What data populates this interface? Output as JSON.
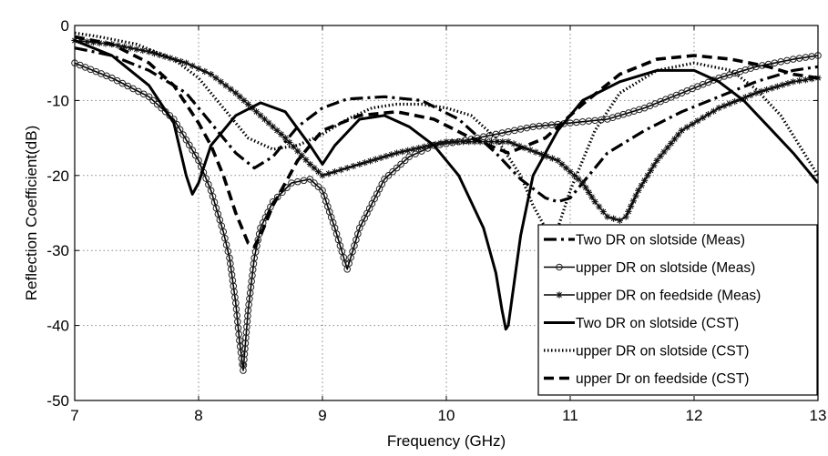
{
  "chart_data": {
    "type": "line",
    "title": "",
    "xlabel": "Frequency (GHz)",
    "ylabel": "Reflection Coefficient(dB)",
    "xlim": [
      7,
      13
    ],
    "ylim": [
      -50,
      0
    ],
    "xticks": [
      "7",
      "8",
      "9",
      "10",
      "11",
      "12",
      "13"
    ],
    "yticks": [
      "0",
      "-10",
      "-20",
      "-30",
      "-40",
      "-50"
    ],
    "grid": true,
    "legend_position": "bottom-right",
    "series": [
      {
        "name": "Two DR on slotside (Meas)",
        "style": "dashdot",
        "marker": "none",
        "x": [
          7.0,
          7.3,
          7.6,
          7.9,
          8.1,
          8.3,
          8.45,
          8.6,
          8.8,
          9.0,
          9.2,
          9.5,
          9.8,
          10.1,
          10.4,
          10.6,
          10.8,
          10.9,
          11.0,
          11.1,
          11.3,
          11.6,
          11.9,
          12.2,
          12.5,
          12.8,
          13.0
        ],
        "y": [
          -3.0,
          -4.0,
          -6.0,
          -9.0,
          -13.0,
          -17.0,
          -19.0,
          -17.5,
          -13.5,
          -11.0,
          -9.8,
          -9.5,
          -10.0,
          -12.5,
          -17.0,
          -20.5,
          -23.0,
          -23.5,
          -23.0,
          -21.0,
          -17.0,
          -14.0,
          -11.5,
          -9.5,
          -7.5,
          -6.0,
          -5.5
        ]
      },
      {
        "name": "upper DR on slotside (Meas)",
        "style": "solid",
        "marker": "circle",
        "x": [
          7.0,
          7.3,
          7.6,
          7.8,
          8.0,
          8.1,
          8.2,
          8.25,
          8.3,
          8.33,
          8.36,
          8.4,
          8.45,
          8.5,
          8.6,
          8.75,
          8.9,
          9.0,
          9.1,
          9.2,
          9.3,
          9.5,
          9.7,
          9.9,
          10.1,
          10.4,
          10.7,
          11.0,
          11.3,
          11.6,
          11.9,
          12.2,
          12.5,
          12.8,
          13.0
        ],
        "y": [
          -5.0,
          -7.0,
          -9.5,
          -12.5,
          -18.0,
          -22.0,
          -27.5,
          -31.0,
          -37.0,
          -42.0,
          -46.0,
          -38.0,
          -31.0,
          -27.0,
          -23.5,
          -21.0,
          -20.5,
          -22.0,
          -27.0,
          -32.5,
          -27.0,
          -20.5,
          -17.5,
          -16.0,
          -15.5,
          -14.5,
          -13.5,
          -13.0,
          -12.5,
          -11.0,
          -9.0,
          -7.0,
          -5.5,
          -4.5,
          -4.0
        ]
      },
      {
        "name": "upper DR on feedside (Meas)",
        "style": "solid",
        "marker": "star",
        "x": [
          7.0,
          7.3,
          7.6,
          7.9,
          8.1,
          8.3,
          8.5,
          8.7,
          8.9,
          9.0,
          9.1,
          9.3,
          9.6,
          10.0,
          10.5,
          10.9,
          11.1,
          11.2,
          11.3,
          11.4,
          11.45,
          11.55,
          11.7,
          11.9,
          12.2,
          12.5,
          12.8,
          13.0
        ],
        "y": [
          -2.0,
          -2.5,
          -3.5,
          -5.0,
          -6.5,
          -9.0,
          -12.0,
          -15.0,
          -18.5,
          -20.0,
          -19.5,
          -18.5,
          -17.0,
          -15.5,
          -15.5,
          -18.0,
          -21.0,
          -23.5,
          -25.5,
          -26.0,
          -25.5,
          -22.0,
          -18.0,
          -14.0,
          -11.0,
          -9.0,
          -7.5,
          -7.0
        ]
      },
      {
        "name": "Two DR on slotside (CST)",
        "style": "solid-thick",
        "marker": "none",
        "x": [
          7.0,
          7.3,
          7.6,
          7.8,
          7.9,
          7.95,
          8.0,
          8.1,
          8.3,
          8.5,
          8.7,
          8.9,
          9.0,
          9.1,
          9.3,
          9.5,
          9.7,
          9.9,
          10.1,
          10.3,
          10.4,
          10.45,
          10.48,
          10.5,
          10.55,
          10.6,
          10.7,
          10.9,
          11.1,
          11.4,
          11.7,
          12.0,
          12.2,
          12.4,
          12.6,
          12.8,
          13.0
        ],
        "y": [
          -2.0,
          -4.0,
          -8.0,
          -13.0,
          -20.0,
          -22.5,
          -21.0,
          -16.0,
          -12.0,
          -10.3,
          -11.5,
          -16.0,
          -18.5,
          -16.0,
          -12.5,
          -12.0,
          -13.5,
          -16.0,
          -20.0,
          -27.0,
          -33.0,
          -38.0,
          -40.5,
          -40.0,
          -34.0,
          -28.0,
          -20.0,
          -14.0,
          -10.0,
          -7.5,
          -6.0,
          -6.0,
          -7.5,
          -10.0,
          -13.5,
          -17.0,
          -21.0
        ]
      },
      {
        "name": "upper DR on slotside (CST)",
        "style": "dotted",
        "marker": "none",
        "x": [
          7.0,
          7.2,
          7.5,
          7.8,
          8.0,
          8.2,
          8.4,
          8.6,
          8.8,
          9.0,
          9.2,
          9.4,
          9.6,
          9.8,
          10.0,
          10.2,
          10.4,
          10.6,
          10.7,
          10.8,
          10.85,
          10.9,
          11.0,
          11.2,
          11.4,
          11.7,
          12.0,
          12.3,
          12.5,
          12.7,
          12.85,
          13.0
        ],
        "y": [
          -1.0,
          -1.5,
          -2.5,
          -4.5,
          -7.0,
          -11.0,
          -15.0,
          -16.5,
          -16.0,
          -14.5,
          -12.5,
          -11.0,
          -10.5,
          -10.5,
          -11.0,
          -12.0,
          -15.0,
          -20.0,
          -24.0,
          -27.0,
          -28.0,
          -27.0,
          -22.0,
          -14.0,
          -9.0,
          -6.0,
          -5.0,
          -6.0,
          -8.5,
          -12.0,
          -16.0,
          -20.0
        ]
      },
      {
        "name": "upper Dr on feedside (CST)",
        "style": "dashed",
        "marker": "none",
        "x": [
          7.0,
          7.3,
          7.6,
          7.8,
          8.0,
          8.1,
          8.2,
          8.3,
          8.35,
          8.4,
          8.45,
          8.5,
          8.6,
          8.8,
          9.0,
          9.3,
          9.6,
          9.9,
          10.2,
          10.5,
          10.8,
          11.1,
          11.4,
          11.7,
          12.0,
          12.3,
          12.6,
          12.8,
          13.0
        ],
        "y": [
          -1.5,
          -2.5,
          -5.0,
          -8.0,
          -13.0,
          -16.0,
          -20.0,
          -25.0,
          -27.0,
          -29.0,
          -29.5,
          -28.0,
          -24.0,
          -18.0,
          -14.0,
          -12.0,
          -11.5,
          -12.5,
          -15.0,
          -17.0,
          -15.0,
          -10.5,
          -6.5,
          -4.5,
          -4.0,
          -4.5,
          -5.5,
          -6.5,
          -7.0
        ]
      }
    ]
  }
}
